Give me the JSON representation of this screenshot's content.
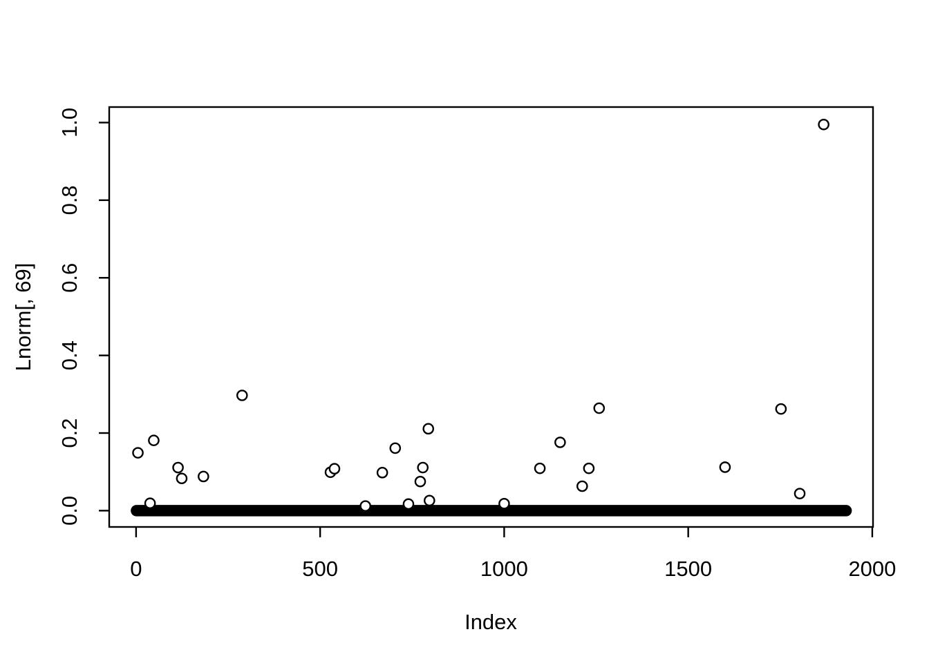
{
  "figure": {
    "background": "#ffffff",
    "foreground": "#000000"
  },
  "chart_data": {
    "type": "scatter",
    "title": "",
    "xlabel": "Index",
    "ylabel": "Lnorm[, 69]",
    "x_ticks": [
      0,
      500,
      1000,
      1500,
      2000
    ],
    "y_ticks": [
      0.0,
      0.2,
      0.4,
      0.6,
      0.8,
      1.0
    ],
    "x_tick_labels": [
      "0",
      "500",
      "1000",
      "1500",
      "2000"
    ],
    "y_tick_labels": [
      "0.0",
      "0.2",
      "0.4",
      "0.6",
      "0.8",
      "1.0"
    ],
    "xlim": [
      -73,
      2002
    ],
    "ylim": [
      -0.042,
      1.04
    ],
    "grid": false,
    "legend": null,
    "marker": "open-circle",
    "dense_band": {
      "description": "dense run of overlapping circles at y ~ 0 spanning nearly the full index range",
      "x_start": 1,
      "x_end": 1929,
      "y": 0.0
    },
    "outlier_points": [
      [
        5,
        0.149
      ],
      [
        38,
        0.019
      ],
      [
        48,
        0.181
      ],
      [
        114,
        0.111
      ],
      [
        124,
        0.083
      ],
      [
        183,
        0.088
      ],
      [
        288,
        0.297
      ],
      [
        528,
        0.099
      ],
      [
        539,
        0.108
      ],
      [
        623,
        0.012
      ],
      [
        669,
        0.098
      ],
      [
        704,
        0.161
      ],
      [
        740,
        0.017
      ],
      [
        772,
        0.075
      ],
      [
        779,
        0.111
      ],
      [
        794,
        0.211
      ],
      [
        797,
        0.026
      ],
      [
        1000,
        0.018
      ],
      [
        1097,
        0.109
      ],
      [
        1152,
        0.176
      ],
      [
        1212,
        0.063
      ],
      [
        1230,
        0.109
      ],
      [
        1258,
        0.264
      ],
      [
        1600,
        0.112
      ],
      [
        1752,
        0.262
      ],
      [
        1803,
        0.044
      ],
      [
        1868,
        0.995
      ]
    ]
  }
}
